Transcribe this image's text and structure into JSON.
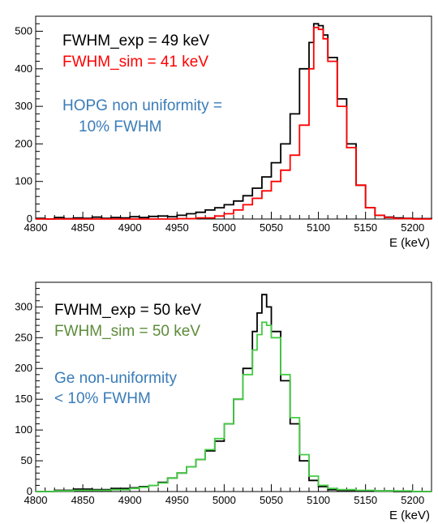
{
  "chart_data": [
    {
      "type": "line",
      "step": true,
      "xlabel": "E (keV)",
      "ylabel": "",
      "title": "",
      "xlim": [
        4800,
        5220
      ],
      "ylim": [
        0,
        540
      ],
      "xticks": [
        4800,
        4850,
        4900,
        4950,
        5000,
        5050,
        5100,
        5150,
        5200
      ],
      "yticks": [
        0,
        100,
        200,
        300,
        400,
        500
      ],
      "grid": false,
      "annotations": [
        {
          "text": "FWHM_exp = 49 keV",
          "color": "#000000"
        },
        {
          "text": "FWHM_sim = 41 keV",
          "color": "#ff0000"
        },
        {
          "text": "HOPG non uniformity =",
          "color": "#3a7cb8"
        },
        {
          "text": "10% FWHM",
          "color": "#3a7cb8"
        }
      ],
      "series": [
        {
          "color": "#000000",
          "x": [
            4800,
            4810,
            4820,
            4830,
            4840,
            4850,
            4860,
            4870,
            4880,
            4890,
            4900,
            4910,
            4920,
            4930,
            4940,
            4950,
            4960,
            4970,
            4980,
            4990,
            5000,
            5010,
            5020,
            5030,
            5040,
            5050,
            5060,
            5070,
            5080,
            5090,
            5095,
            5100,
            5105,
            5110,
            5120,
            5130,
            5140,
            5150,
            5160,
            5170,
            5180,
            5190,
            5200,
            5210,
            5220
          ],
          "y": [
            2,
            0,
            4,
            1,
            3,
            2,
            5,
            2,
            4,
            3,
            6,
            4,
            7,
            8,
            6,
            10,
            14,
            18,
            24,
            30,
            38,
            48,
            62,
            82,
            112,
            150,
            200,
            280,
            400,
            470,
            520,
            515,
            490,
            430,
            320,
            200,
            90,
            30,
            10,
            5,
            3,
            2,
            1,
            1,
            0
          ]
        },
        {
          "color": "#ff0000",
          "x": [
            4800,
            4850,
            4900,
            4950,
            4970,
            4990,
            5000,
            5010,
            5020,
            5030,
            5040,
            5050,
            5060,
            5070,
            5080,
            5090,
            5095,
            5100,
            5105,
            5110,
            5120,
            5130,
            5140,
            5150,
            5160,
            5170,
            5180,
            5200,
            5220
          ],
          "y": [
            0,
            0,
            0,
            1,
            3,
            8,
            14,
            24,
            38,
            55,
            75,
            100,
            130,
            170,
            250,
            400,
            510,
            505,
            480,
            420,
            300,
            190,
            90,
            30,
            10,
            4,
            1,
            0,
            0
          ]
        }
      ]
    },
    {
      "type": "line",
      "step": true,
      "xlabel": "E (keV)",
      "ylabel": "",
      "title": "",
      "xlim": [
        4800,
        5220
      ],
      "ylim": [
        0,
        340
      ],
      "xticks": [
        4800,
        4850,
        4900,
        4950,
        5000,
        5050,
        5100,
        5150,
        5200
      ],
      "yticks": [
        0,
        50,
        100,
        150,
        200,
        250,
        300
      ],
      "grid": false,
      "annotations": [
        {
          "text": "FWHM_exp = 50 keV",
          "color": "#000000"
        },
        {
          "text": "FWHM_sim = 50 keV",
          "color": "#5c8c3a"
        },
        {
          "text": "Ge non-uniformity",
          "color": "#3a7cb8"
        },
        {
          "text": "< 10% FWHM",
          "color": "#3a7cb8"
        }
      ],
      "series": [
        {
          "color": "#000000",
          "x": [
            4800,
            4820,
            4840,
            4860,
            4880,
            4900,
            4910,
            4920,
            4930,
            4940,
            4950,
            4960,
            4970,
            4980,
            4990,
            5000,
            5010,
            5020,
            5030,
            5035,
            5040,
            5045,
            5050,
            5060,
            5070,
            5080,
            5090,
            5100,
            5110,
            5120,
            5140,
            5160,
            5180,
            5200,
            5220
          ],
          "y": [
            0,
            2,
            4,
            3,
            5,
            6,
            8,
            10,
            15,
            22,
            30,
            40,
            52,
            66,
            82,
            110,
            150,
            200,
            260,
            290,
            320,
            300,
            260,
            180,
            110,
            50,
            18,
            8,
            3,
            2,
            1,
            1,
            0,
            0,
            0
          ]
        },
        {
          "color": "#44cc44",
          "x": [
            4800,
            4820,
            4840,
            4860,
            4880,
            4900,
            4910,
            4920,
            4930,
            4940,
            4950,
            4960,
            4970,
            4980,
            4990,
            5000,
            5010,
            5020,
            5030,
            5035,
            5040,
            5045,
            5050,
            5060,
            5070,
            5080,
            5090,
            5100,
            5110,
            5120,
            5140,
            5160,
            5180,
            5200,
            5220
          ],
          "y": [
            0,
            1,
            2,
            2,
            3,
            5,
            7,
            10,
            14,
            22,
            30,
            40,
            52,
            68,
            86,
            110,
            150,
            190,
            230,
            255,
            275,
            270,
            250,
            190,
            120,
            60,
            25,
            10,
            5,
            3,
            2,
            1,
            1,
            0,
            0
          ]
        }
      ]
    }
  ]
}
